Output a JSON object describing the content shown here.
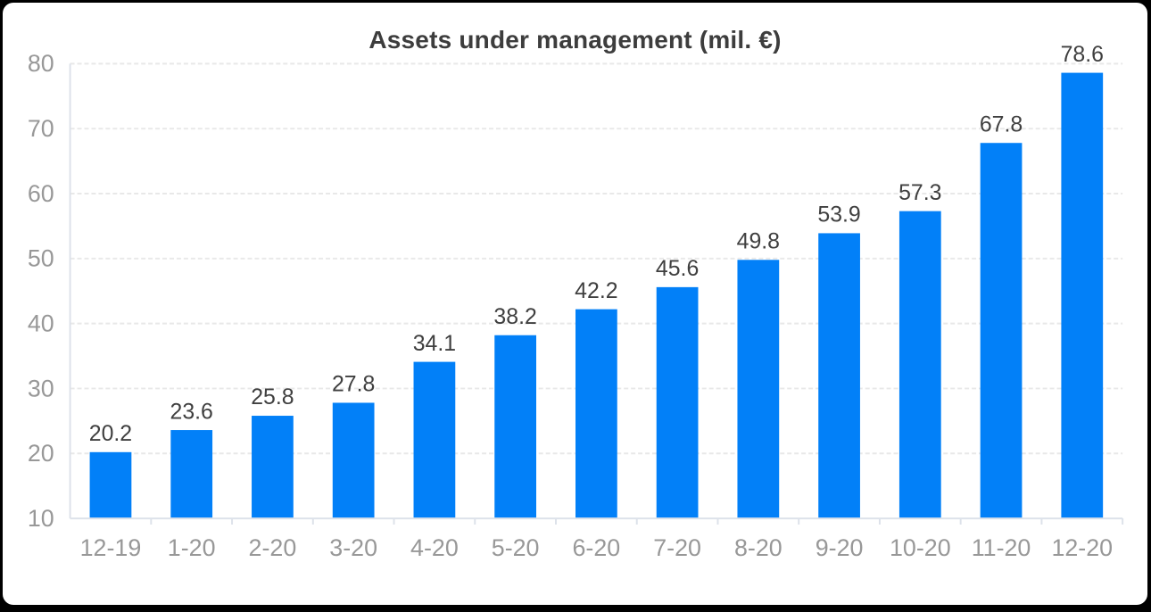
{
  "colors": {
    "bar": "#0280F8",
    "title_text": "#3d3d3d",
    "value_label_text": "#3f3f3f",
    "axis_label_text": "#989898",
    "gridline": "#e8e8e8",
    "axis_line": "#dde2ea",
    "card_background": "#ffffff",
    "frame_background": "#000000"
  },
  "chart_data": {
    "type": "bar",
    "title": "Assets under management (mil. €)",
    "categories": [
      "12-19",
      "1-20",
      "2-20",
      "3-20",
      "4-20",
      "5-20",
      "6-20",
      "7-20",
      "8-20",
      "9-20",
      "10-20",
      "11-20",
      "12-20"
    ],
    "values": [
      20.2,
      23.6,
      25.8,
      27.8,
      34.1,
      38.2,
      42.2,
      45.6,
      49.8,
      53.9,
      57.3,
      67.8,
      78.6
    ],
    "data_labels": [
      "20.2",
      "23.6",
      "25.8",
      "27.8",
      "34.1",
      "38.2",
      "42.2",
      "45.6",
      "49.8",
      "53.9",
      "57.3",
      "67.8",
      "78.6"
    ],
    "xlabel": "",
    "ylabel": "",
    "ylim": [
      10,
      80
    ],
    "yticks": [
      10,
      20,
      30,
      40,
      50,
      60,
      70,
      80
    ],
    "grid": "horizontal-dashed",
    "legend": "none",
    "data_labels_position": "above-bars"
  }
}
